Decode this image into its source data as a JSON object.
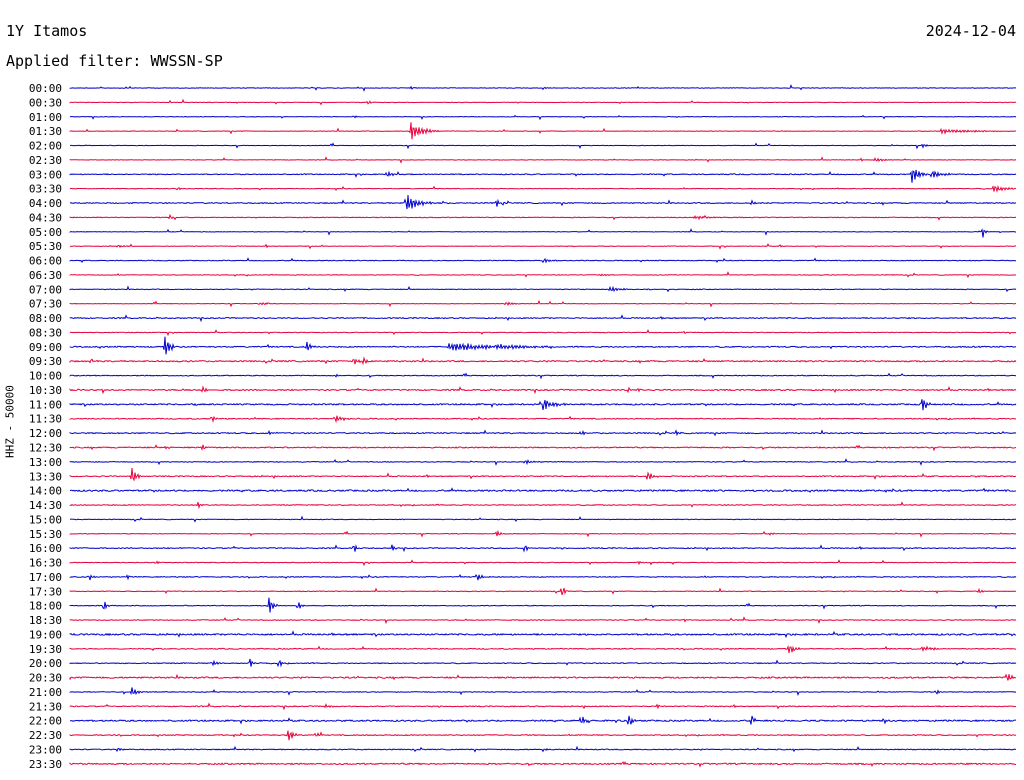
{
  "header": {
    "station": "1Y Itamos",
    "date": "2024-12-04",
    "filter": "Applied filter: WWSSN-SP"
  },
  "chart_data": {
    "type": "line",
    "ylabel": "HHZ - 50000",
    "colors": [
      "#0000cc",
      "#e8003a"
    ],
    "x_range": [
      0,
      1
    ],
    "hours": [
      "00:00",
      "00:30",
      "01:00",
      "01:30",
      "02:00",
      "02:30",
      "03:00",
      "03:30",
      "04:00",
      "04:30",
      "05:00",
      "05:30",
      "06:00",
      "06:30",
      "07:00",
      "07:30",
      "08:00",
      "08:30",
      "09:00",
      "09:30",
      "10:00",
      "10:30",
      "11:00",
      "11:30",
      "12:00",
      "12:30",
      "13:00",
      "13:30",
      "14:00",
      "14:30",
      "15:00",
      "15:30",
      "16:00",
      "16:30",
      "17:00",
      "17:30",
      "18:00",
      "18:30",
      "19:00",
      "19:30",
      "20:00",
      "20:30",
      "21:00",
      "21:30",
      "22:00",
      "22:30",
      "23:00",
      "23:30"
    ],
    "noise": [
      0.5,
      0.5,
      0.5,
      0.5,
      0.4,
      0.4,
      0.9,
      0.6,
      1.0,
      0.7,
      0.5,
      0.5,
      0.7,
      0.5,
      0.7,
      0.5,
      1.0,
      0.6,
      1.1,
      1.3,
      0.8,
      1.2,
      1.3,
      0.9,
      1.1,
      1.1,
      0.7,
      1.0,
      1.5,
      0.8,
      0.6,
      0.6,
      0.9,
      0.6,
      0.8,
      0.7,
      0.7,
      0.7,
      1.5,
      0.9,
      0.9,
      1.4,
      0.7,
      0.9,
      1.4,
      0.9,
      0.9,
      1.3
    ],
    "events": [
      [
        [
          0.36,
          2,
          2
        ],
        [
          0.5,
          2,
          3
        ]
      ],
      [
        [
          0.315,
          3,
          3
        ]
      ],
      [
        [
          0.3,
          2,
          2
        ]
      ],
      [
        [
          0.36,
          12,
          10
        ],
        [
          0.92,
          3,
          25
        ]
      ],
      [
        [
          0.9,
          3,
          4
        ]
      ],
      [
        [
          0.85,
          3,
          8
        ]
      ],
      [
        [
          0.335,
          4,
          4
        ],
        [
          0.89,
          11,
          6
        ],
        [
          0.911,
          6,
          8
        ]
      ],
      [
        [
          0.114,
          3,
          2
        ],
        [
          0.975,
          5,
          10
        ]
      ],
      [
        [
          0.355,
          12,
          10
        ],
        [
          0.45,
          7,
          3
        ],
        [
          0.72,
          6,
          2
        ]
      ],
      [
        [
          0.105,
          5,
          2
        ],
        [
          0.66,
          2,
          12
        ]
      ],
      [
        [
          0.965,
          7,
          2
        ]
      ],
      [
        [
          0.05,
          2,
          6
        ],
        [
          0.75,
          2,
          3
        ]
      ],
      [
        [
          0.5,
          3,
          6
        ]
      ],
      [
        [
          0.56,
          2,
          5
        ]
      ],
      [
        [
          0.57,
          3,
          10
        ],
        [
          0.61,
          2,
          2
        ]
      ],
      [
        [
          0.2,
          2,
          8
        ],
        [
          0.46,
          2,
          10
        ]
      ],
      [],
      [
        [
          0.65,
          2,
          2
        ]
      ],
      [
        [
          0.1,
          16,
          4
        ],
        [
          0.25,
          8,
          3
        ],
        [
          0.4,
          5,
          40
        ],
        [
          0.45,
          2,
          20
        ]
      ],
      [
        [
          0.3,
          6,
          3
        ],
        [
          0.31,
          5,
          3
        ],
        [
          0.02,
          3,
          5
        ]
      ],
      [
        [
          0.28,
          3,
          3
        ]
      ],
      [
        [
          0.14,
          6,
          3
        ],
        [
          0.59,
          5,
          2
        ],
        [
          0.6,
          4,
          2
        ]
      ],
      [
        [
          0.5,
          8,
          8
        ],
        [
          0.9,
          12,
          4
        ],
        [
          0.13,
          3,
          2
        ]
      ],
      [
        [
          0.15,
          6,
          2
        ],
        [
          0.28,
          5,
          6
        ]
      ],
      [
        [
          0.21,
          3,
          4
        ],
        [
          0.54,
          4,
          3
        ],
        [
          0.64,
          4,
          3
        ]
      ],
      [
        [
          0.14,
          5,
          2
        ],
        [
          0.1,
          2,
          5
        ]
      ],
      [
        [
          0.48,
          3,
          8
        ]
      ],
      [
        [
          0.065,
          12,
          4
        ],
        [
          0.61,
          9,
          4
        ]
      ],
      [],
      [
        [
          0.135,
          5,
          2
        ]
      ],
      [
        [
          0.35,
          2,
          2
        ]
      ],
      [
        [
          0.45,
          5,
          4
        ],
        [
          0.74,
          2,
          3
        ]
      ],
      [
        [
          0.3,
          8,
          2
        ],
        [
          0.34,
          6,
          2
        ],
        [
          0.48,
          12,
          2
        ]
      ],
      [
        [
          0.09,
          4,
          2
        ],
        [
          0.6,
          3,
          3
        ]
      ],
      [
        [
          0.02,
          5,
          3
        ],
        [
          0.06,
          4,
          2
        ],
        [
          0.43,
          8,
          3
        ]
      ],
      [
        [
          0.52,
          11,
          2
        ],
        [
          0.96,
          4,
          4
        ]
      ],
      [
        [
          0.035,
          14,
          2
        ],
        [
          0.21,
          15,
          3
        ],
        [
          0.24,
          8,
          3
        ]
      ],
      [
        [
          0.65,
          2,
          2
        ]
      ],
      [],
      [
        [
          0.76,
          6,
          6
        ],
        [
          0.9,
          3,
          10
        ]
      ],
      [
        [
          0.19,
          10,
          2
        ],
        [
          0.22,
          10,
          2
        ],
        [
          0.15,
          3,
          5
        ]
      ],
      [
        [
          0.99,
          10,
          3
        ]
      ],
      [
        [
          0.065,
          8,
          4
        ],
        [
          0.915,
          5,
          2
        ]
      ],
      [
        [
          0.27,
          3,
          4
        ],
        [
          0.62,
          5,
          2
        ]
      ],
      [
        [
          0.54,
          8,
          3
        ],
        [
          0.59,
          10,
          3
        ],
        [
          0.72,
          12,
          2
        ],
        [
          0.86,
          5,
          2
        ]
      ],
      [
        [
          0.23,
          8,
          5
        ],
        [
          0.26,
          4,
          3
        ]
      ],
      [
        [
          0.05,
          4,
          3
        ],
        [
          0.5,
          3,
          3
        ]
      ],
      []
    ]
  }
}
